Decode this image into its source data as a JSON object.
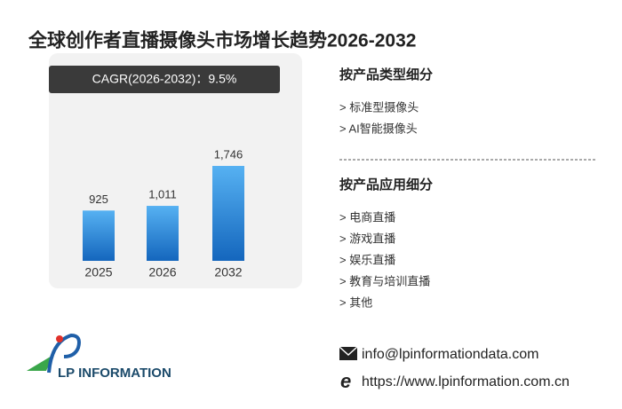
{
  "chart_data": {
    "type": "bar",
    "title": "全球创作者直播摄像头市场增长趋势2026-2032",
    "annotation": "CAGR(2026-2032)：9.5%",
    "categories": [
      "2025",
      "2026",
      "2032"
    ],
    "values": [
      925,
      1011,
      1746
    ],
    "value_labels": [
      "925",
      "1,011",
      "1,746"
    ],
    "color": "#56b1f2"
  },
  "segments": [
    {
      "title": "按产品类型细分",
      "items": [
        "> 标准型摄像头",
        "> AI智能摄像头"
      ]
    },
    {
      "title": "按产品应用细分",
      "items": [
        "> 电商直播",
        "> 游戏直播",
        "> 娱乐直播",
        "> 教育与培训直播",
        "> 其他"
      ]
    }
  ],
  "contact": {
    "email": "info@lpinformationdata.com",
    "website": "https://www.lpinformation.com.cn"
  },
  "logo": {
    "text": "LP INFORMATION"
  }
}
